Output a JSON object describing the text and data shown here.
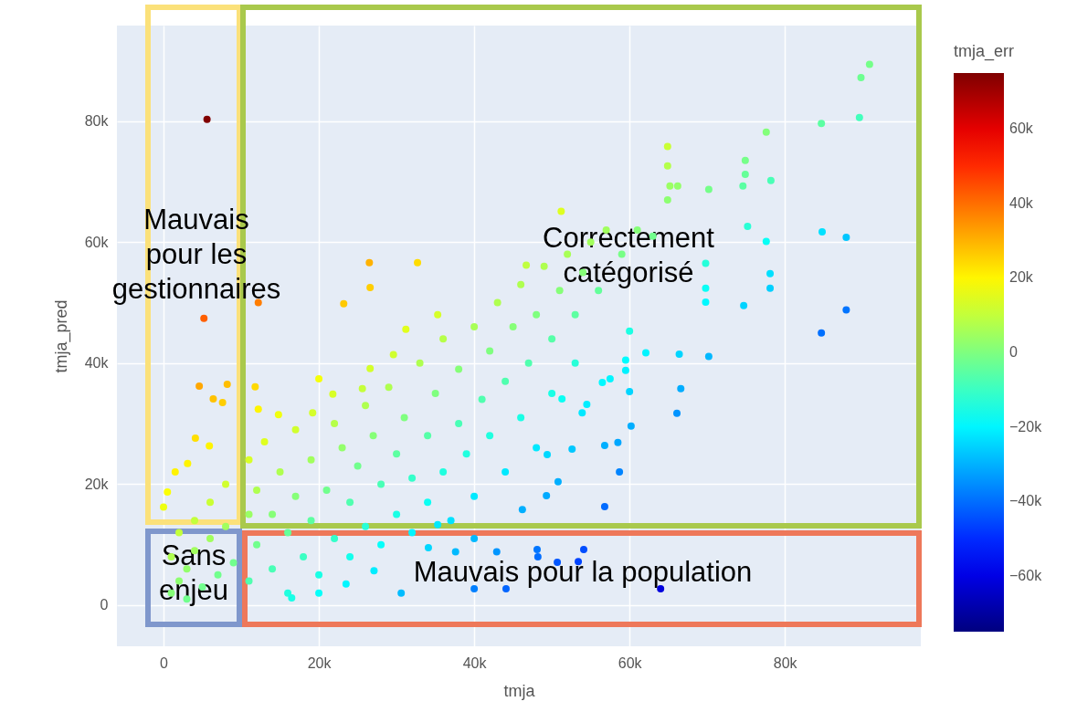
{
  "chart_data": {
    "type": "scatter",
    "xlabel": "tmja",
    "ylabel": "tmja_pred",
    "clabel": "tmja_err",
    "xlim": [
      -6000,
      97500
    ],
    "ylim": [
      -6800,
      95800
    ],
    "xticks": [
      0,
      {
        "value": 20000,
        "label": "20k"
      },
      {
        "value": 40000,
        "label": "40k"
      },
      {
        "value": 60000,
        "label": "60k"
      },
      {
        "value": 80000,
        "label": "80k"
      }
    ],
    "yticks": [
      0,
      {
        "value": 20000,
        "label": "20k"
      },
      {
        "value": 40000,
        "label": "40k"
      },
      {
        "value": 60000,
        "label": "60k"
      },
      {
        "value": 80000,
        "label": "80k"
      }
    ],
    "clim": [
      -75000,
      75000
    ],
    "cticks": [
      {
        "value": -60000,
        "label": "−60k"
      },
      {
        "value": -40000,
        "label": "−40k"
      },
      {
        "value": -20000,
        "label": "−20k"
      },
      0,
      {
        "value": 20000,
        "label": "20k"
      },
      {
        "value": 40000,
        "label": "40k"
      },
      {
        "value": 60000,
        "label": "60k"
      }
    ],
    "grid": true,
    "marker": "circle",
    "annotations": [
      "Mauvais\npour les\ngestionnaires",
      "Correctement\ncatégorisé",
      "Sans\nenjeu",
      "Mauvais pour la population"
    ],
    "series": [
      {
        "x": [
          1000,
          1000,
          2000,
          2000,
          3000,
          3000,
          4000,
          4000,
          5000,
          6000,
          6000,
          7000,
          8000,
          8000,
          9000,
          11000,
          11000,
          11000,
          12000,
          12000,
          13000,
          14000,
          14000,
          15000,
          16000,
          16000,
          17000,
          17000,
          18000,
          19000,
          19000,
          20000,
          21000,
          22000,
          22000,
          23000,
          24000,
          24000,
          25000,
          26000,
          26000,
          27000,
          28000,
          28000,
          29000,
          30000,
          30000,
          31000,
          32000,
          32000,
          33000,
          34000,
          34000,
          35000,
          36000,
          36000,
          37000,
          38000,
          38000,
          39000,
          40000,
          40000,
          41000,
          42000,
          42000,
          43000,
          44000,
          44000,
          45000,
          46000,
          46000,
          47000,
          48000,
          48000,
          49000,
          50000,
          50000,
          51000,
          52000,
          53000,
          53000,
          54000,
          55000,
          56000,
          57000,
          59000,
          61000,
          63000,
          5600,
          5200,
          12200,
          26500,
          32700,
          26600,
          23200,
          4600,
          8200,
          6400,
          7600,
          11800,
          12200,
          4100,
          5900,
          1500,
          3100,
          0,
          500,
          20000,
          21800,
          26600,
          31200,
          35300,
          29600,
          14800,
          19200,
          25600,
          90900,
          89800,
          89600,
          84700,
          77600,
          64900,
          64900,
          65200,
          66200,
          64900,
          70200,
          74900,
          74900,
          74600,
          78200,
          75200,
          77600,
          84800,
          87900,
          69800,
          78100,
          78100,
          69800,
          69800,
          74700,
          87900,
          84700,
          51200,
          46700,
          60000,
          62100,
          66400,
          70200,
          59500,
          59500,
          60000,
          66600,
          66100,
          60200,
          56800,
          58500,
          58700,
          52600,
          56800,
          49400,
          50800,
          49300,
          46200,
          54100,
          53400,
          50700,
          48100,
          64000,
          56500,
          57500,
          54500,
          53900,
          51300,
          30600,
          40000,
          44100,
          34100,
          37600,
          42900,
          48200,
          35300,
          40000,
          27100,
          23500,
          20000,
          16500
        ],
        "values": [
          2000,
          8000,
          4000,
          12000,
          1000,
          6000,
          9000,
          14000,
          3000,
          11000,
          17000,
          5000,
          13000,
          20000,
          7000,
          15000,
          24000,
          4000,
          10000,
          19000,
          27000,
          6000,
          15000,
          22000,
          2000,
          12000,
          18000,
          29000,
          8000,
          14000,
          24000,
          5000,
          19000,
          30000,
          11000,
          26000,
          8000,
          17000,
          23000,
          33000,
          13000,
          28000,
          10000,
          20000,
          36000,
          25000,
          15000,
          31000,
          12000,
          21000,
          40000,
          28000,
          17000,
          35000,
          22000,
          44000,
          14000,
          30000,
          39000,
          25000,
          46000,
          18000,
          34000,
          42000,
          28000,
          50000,
          22000,
          37000,
          46000,
          31000,
          53000,
          40000,
          26000,
          48000,
          56000,
          35000,
          44000,
          52000,
          58000,
          40000,
          48000,
          55000,
          60000,
          52000,
          62000,
          58000,
          62000,
          61000,
          80300,
          47400,
          50000,
          56600,
          56600,
          52500,
          49800,
          36200,
          36500,
          34100,
          33500,
          36100,
          32400,
          27600,
          26300,
          22000,
          23400,
          16200,
          18700,
          37400,
          34900,
          39100,
          45600,
          48000,
          41400,
          31500,
          31800,
          35800,
          89400,
          87200,
          80600,
          79600,
          78200,
          75800,
          72600,
          69300,
          69300,
          67000,
          68700,
          73500,
          71200,
          69300,
          70200,
          62600,
          60100,
          61700,
          60800,
          56500,
          54800,
          52400,
          52400,
          50100,
          49500,
          48800,
          45000,
          65100,
          56200,
          45300,
          41700,
          41500,
          41100,
          40500,
          38800,
          35300,
          35800,
          31700,
          29600,
          26400,
          26900,
          22000,
          25800,
          16300,
          24900,
          20400,
          18100,
          15800,
          9200,
          7200,
          7100,
          9200,
          2700,
          36800,
          37400,
          33200,
          31800,
          34100,
          2000,
          2700,
          2700,
          9500,
          8800,
          8800,
          8000,
          13300,
          11000,
          5700,
          3500,
          2000,
          1200
        ],
        "cvalues": [
          1000,
          7000,
          2000,
          10000,
          -2000,
          3000,
          5000,
          10000,
          -2000,
          5000,
          11000,
          -2000,
          5000,
          12000,
          -2000,
          4000,
          13000,
          -7000,
          -2000,
          7000,
          14000,
          -8000,
          1000,
          7000,
          -14000,
          -4000,
          1000,
          12000,
          -10000,
          -5000,
          5000,
          -15000,
          -2000,
          8000,
          -11000,
          3000,
          -16000,
          -7000,
          -2000,
          7000,
          -13000,
          1000,
          -18000,
          -8000,
          7000,
          -5000,
          -15000,
          0,
          -20000,
          -11000,
          7000,
          -6000,
          -17000,
          0,
          -14000,
          8000,
          -23000,
          -8000,
          1000,
          -14000,
          6000,
          -22000,
          -7000,
          0,
          -14000,
          7000,
          -22000,
          -7000,
          1000,
          -15000,
          7000,
          -7000,
          -22000,
          0,
          7000,
          -15000,
          -6000,
          1000,
          6000,
          -13000,
          -5000,
          1000,
          5000,
          -4000,
          5000,
          -1000,
          1000,
          -2000,
          74700,
          42200,
          37800,
          30100,
          23900,
          25900,
          26600,
          31600,
          28300,
          27700,
          25900,
          24300,
          20200,
          23500,
          20400,
          20500,
          20300,
          16200,
          18200,
          17400,
          13100,
          12500,
          14400,
          12700,
          11800,
          16700,
          12600,
          10200,
          -1500,
          -2600,
          -9000,
          -5100,
          600,
          10900,
          7700,
          4100,
          3100,
          2100,
          -1500,
          -1400,
          -3700,
          -5300,
          -8000,
          -12600,
          -17500,
          -23100,
          -27100,
          -13300,
          -23300,
          -25700,
          -17400,
          -19700,
          -25200,
          -39100,
          -39700,
          13900,
          9500,
          -14700,
          -20400,
          -24900,
          -29100,
          -19000,
          -20700,
          -24700,
          -30800,
          -34400,
          -30600,
          -30400,
          -31600,
          -36700,
          -26800,
          -40500,
          -24500,
          -30400,
          -31200,
          -30400,
          -44900,
          -46200,
          -43600,
          -38900,
          -61300,
          -19700,
          -20100,
          -21300,
          -22100,
          -17200,
          -28600,
          -37300,
          -41400,
          -24600,
          -28800,
          -34100,
          -40200,
          -22000,
          -29000,
          -21400,
          -20000,
          -18000,
          -15300
        ]
      }
    ]
  }
}
